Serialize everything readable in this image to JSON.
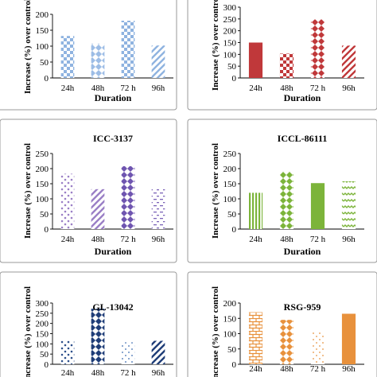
{
  "chart_data": [
    {
      "type": "bar",
      "title": "",
      "xlabel": "Duration",
      "ylabel": "Increase (%) over control",
      "categories": [
        "24h",
        "48h",
        "72 h",
        "96h"
      ],
      "values": [
        132,
        108,
        180,
        102
      ],
      "ylim": [
        0,
        200
      ],
      "yticks": [
        0,
        50,
        100,
        150,
        200
      ],
      "grid": false,
      "colors": [
        "#8fb3e0",
        "#9dbde6",
        "#8fb3e0",
        "#8fb3e0"
      ],
      "patterns": [
        "checker",
        "diamond",
        "checker",
        "diag"
      ]
    },
    {
      "type": "bar",
      "title": "",
      "xlabel": "Duration",
      "ylabel": "Increase (%) over control",
      "categories": [
        "24h",
        "48h",
        "72 h",
        "96h"
      ],
      "values": [
        150,
        103,
        248,
        137
      ],
      "ylim": [
        0,
        300
      ],
      "yticks": [
        0,
        50,
        100,
        150,
        200,
        250,
        300
      ],
      "grid": false,
      "colors": [
        "#c0383a",
        "#c0383a",
        "#c0383a",
        "#c0383a"
      ],
      "patterns": [
        "solid",
        "checker",
        "diamond",
        "diag"
      ]
    },
    {
      "type": "bar",
      "title": "ICC-3137",
      "xlabel": "Duration",
      "ylabel": "Increase (%) over control",
      "categories": [
        "24h",
        "48h",
        "72 h",
        "96h"
      ],
      "values": [
        183,
        132,
        208,
        132
      ],
      "ylim": [
        0,
        250
      ],
      "yticks": [
        0,
        50,
        100,
        150,
        200,
        250
      ],
      "grid": false,
      "colors": [
        "#9a7fc6",
        "#9a7fc6",
        "#6f55b0",
        "#7c64b8"
      ],
      "patterns": [
        "dots",
        "diag",
        "diamond",
        "dash"
      ]
    },
    {
      "type": "bar",
      "title": "ICCL-86111",
      "xlabel": "Duration",
      "ylabel": "Increase (%) over control",
      "categories": [
        "24h",
        "48h",
        "72 h",
        "96h"
      ],
      "values": [
        120,
        190,
        152,
        158
      ],
      "ylim": [
        0,
        250
      ],
      "yticks": [
        0,
        50,
        100,
        150,
        200,
        250
      ],
      "grid": false,
      "colors": [
        "#7cb43a",
        "#7cb43a",
        "#7cb43a",
        "#7cb43a"
      ],
      "patterns": [
        "vert",
        "diamond",
        "solid",
        "zigzag"
      ]
    },
    {
      "type": "bar",
      "title": "GL-13042",
      "xlabel": "",
      "ylabel": "Increase (%) over control",
      "categories": [
        "24h",
        "48h",
        "72 h",
        "96h"
      ],
      "values": [
        117,
        272,
        108,
        115
      ],
      "ylim": [
        0,
        300
      ],
      "yticks": [
        0,
        50,
        100,
        150,
        200,
        250,
        300
      ],
      "grid": false,
      "colors": [
        "#2c4f8a",
        "#1f3d78",
        "#3a6bb0",
        "#1f3d78"
      ],
      "patterns": [
        "dots",
        "diamond",
        "sparse",
        "diag"
      ]
    },
    {
      "type": "bar",
      "title": "RSG-959",
      "xlabel": "",
      "ylabel": "Increase (%) over control",
      "categories": [
        "24h",
        "48h",
        "72 h",
        "96h"
      ],
      "values": [
        170,
        145,
        108,
        165
      ],
      "ylim": [
        0,
        200
      ],
      "yticks": [
        0,
        50,
        100,
        150,
        200
      ],
      "grid": false,
      "colors": [
        "#e8913c",
        "#e8913c",
        "#e8913c",
        "#e8913c"
      ],
      "patterns": [
        "brick",
        "diamond",
        "sparse",
        "solid"
      ]
    }
  ]
}
